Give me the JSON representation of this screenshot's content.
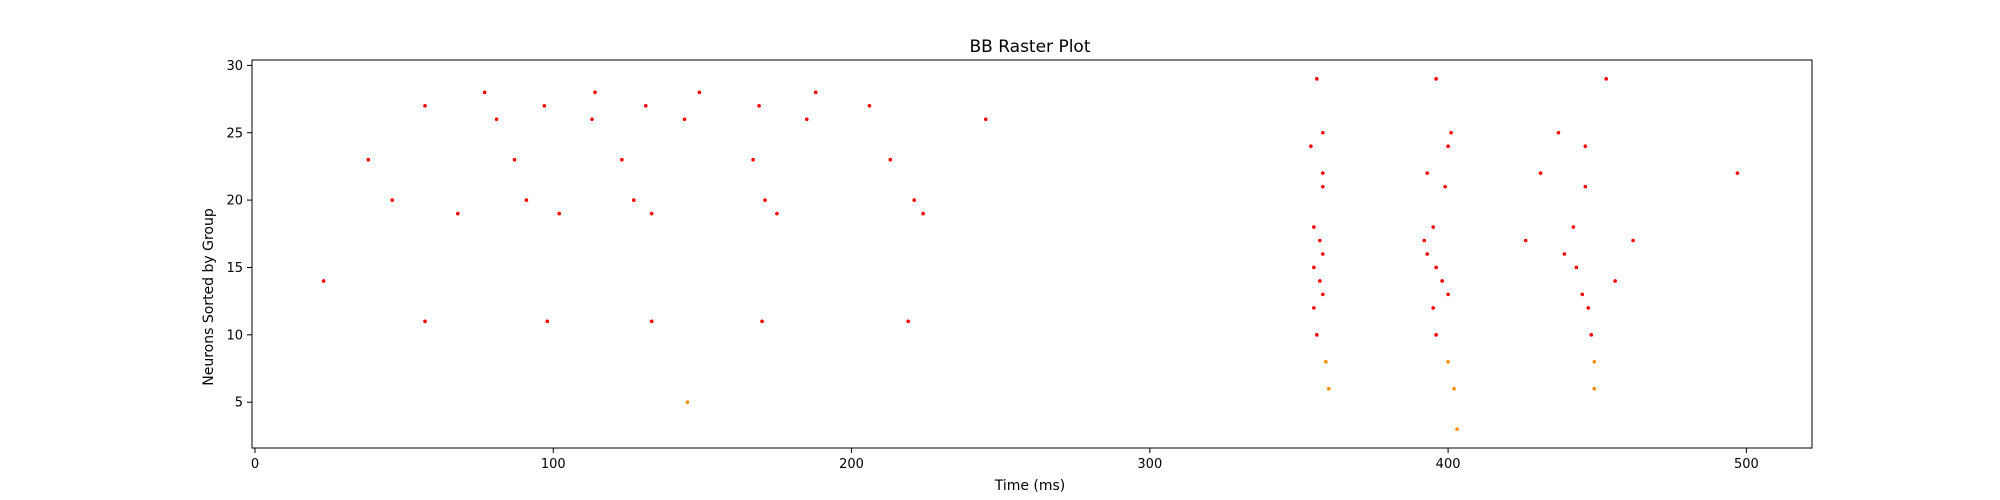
{
  "chart_data": {
    "type": "scatter",
    "title": "BB Raster Plot",
    "xlabel": "Time (ms)",
    "ylabel": "Neurons Sorted by Group",
    "xlim": [
      -1,
      522
    ],
    "ylim": [
      1.6,
      30.4
    ],
    "xticks": [
      0,
      100,
      200,
      300,
      400,
      500
    ],
    "yticks": [
      5,
      10,
      15,
      20,
      25,
      30
    ],
    "grid": false,
    "colors": {
      "red": "#ff0000",
      "orange": "#ff8c00"
    },
    "series": [
      {
        "name": "red-spikes",
        "color": "#ff0000",
        "points": [
          [
            23,
            14
          ],
          [
            38,
            23
          ],
          [
            46,
            20
          ],
          [
            57,
            27
          ],
          [
            57,
            11
          ],
          [
            68,
            19
          ],
          [
            77,
            28
          ],
          [
            81,
            26
          ],
          [
            87,
            23
          ],
          [
            91,
            20
          ],
          [
            97,
            27
          ],
          [
            98,
            11
          ],
          [
            102,
            19
          ],
          [
            113,
            26
          ],
          [
            114,
            28
          ],
          [
            123,
            23
          ],
          [
            127,
            20
          ],
          [
            131,
            27
          ],
          [
            133,
            19
          ],
          [
            133,
            11
          ],
          [
            144,
            26
          ],
          [
            149,
            28
          ],
          [
            167,
            23
          ],
          [
            169,
            27
          ],
          [
            170,
            11
          ],
          [
            171,
            20
          ],
          [
            175,
            19
          ],
          [
            185,
            26
          ],
          [
            188,
            28
          ],
          [
            206,
            27
          ],
          [
            213,
            23
          ],
          [
            219,
            11
          ],
          [
            221,
            20
          ],
          [
            224,
            19
          ],
          [
            245,
            26
          ],
          [
            354,
            24
          ],
          [
            355,
            18
          ],
          [
            355,
            15
          ],
          [
            356,
            29
          ],
          [
            355,
            12
          ],
          [
            356,
            10
          ],
          [
            357,
            17
          ],
          [
            357,
            14
          ],
          [
            358,
            25
          ],
          [
            358,
            22
          ],
          [
            358,
            21
          ],
          [
            358,
            16
          ],
          [
            358,
            13
          ],
          [
            392,
            17
          ],
          [
            393,
            22
          ],
          [
            393,
            16
          ],
          [
            395,
            18
          ],
          [
            395,
            12
          ],
          [
            396,
            29
          ],
          [
            396,
            15
          ],
          [
            396,
            10
          ],
          [
            398,
            14
          ],
          [
            399,
            21
          ],
          [
            400,
            24
          ],
          [
            400,
            13
          ],
          [
            401,
            25
          ],
          [
            426,
            17
          ],
          [
            431,
            22
          ],
          [
            437,
            25
          ],
          [
            439,
            16
          ],
          [
            442,
            18
          ],
          [
            443,
            15
          ],
          [
            445,
            13
          ],
          [
            446,
            24
          ],
          [
            446,
            21
          ],
          [
            447,
            12
          ],
          [
            448,
            10
          ],
          [
            453,
            29
          ],
          [
            456,
            14
          ],
          [
            462,
            17
          ],
          [
            497,
            22
          ]
        ]
      },
      {
        "name": "orange-spikes",
        "color": "#ff8c00",
        "points": [
          [
            145,
            5
          ],
          [
            359,
            8
          ],
          [
            360,
            6
          ],
          [
            400,
            8
          ],
          [
            402,
            6
          ],
          [
            403,
            3
          ],
          [
            449,
            8
          ],
          [
            449,
            6
          ]
        ]
      }
    ]
  }
}
